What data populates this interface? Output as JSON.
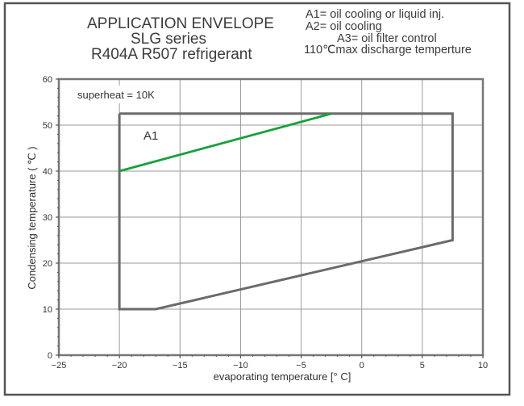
{
  "header": {
    "title_lines": [
      "APPLICATION ENVELOPE",
      "SLG series",
      "R404A R507  refrigerant"
    ],
    "notes": [
      "A1= oil cooling or liquid inj.",
      "A2= oil cooling",
      "A3= oil filter control",
      "110℃max discharge temperture"
    ]
  },
  "chart_data": {
    "type": "line",
    "title": "APPLICATION ENVELOPE SLG series R404A R507 refrigerant",
    "xlabel": "evaporating temperature [°  C]",
    "ylabel": "Condensing temperature ( ℃ )",
    "xlim": [
      -25,
      10
    ],
    "ylim": [
      0,
      60
    ],
    "x_ticks": [
      -25,
      -20,
      -15,
      -10,
      -5,
      0,
      5,
      10
    ],
    "x_tick_labels": [
      "−25",
      "−20",
      "−15",
      "−10",
      "−5",
      "0",
      "5",
      "10"
    ],
    "y_ticks": [
      0,
      10,
      20,
      30,
      40,
      50,
      60
    ],
    "y_tick_labels": [
      "0",
      "10",
      "20",
      "30",
      "40",
      "50",
      "60"
    ],
    "grid": true,
    "annotations": [
      "superheat = 10K",
      "A1"
    ],
    "series": [
      {
        "name": "",
        "color": "#6b6b6b",
        "points": [
          [
            -20,
            52.5
          ],
          [
            7.5,
            52.5
          ],
          [
            7.5,
            25
          ],
          [
            -17,
            10
          ],
          [
            -20,
            10
          ],
          [
            -20,
            52.5
          ]
        ]
      },
      {
        "name": "",
        "color": "#16a03c",
        "points": [
          [
            -20,
            40
          ],
          [
            -2.5,
            52.5
          ]
        ]
      }
    ]
  }
}
